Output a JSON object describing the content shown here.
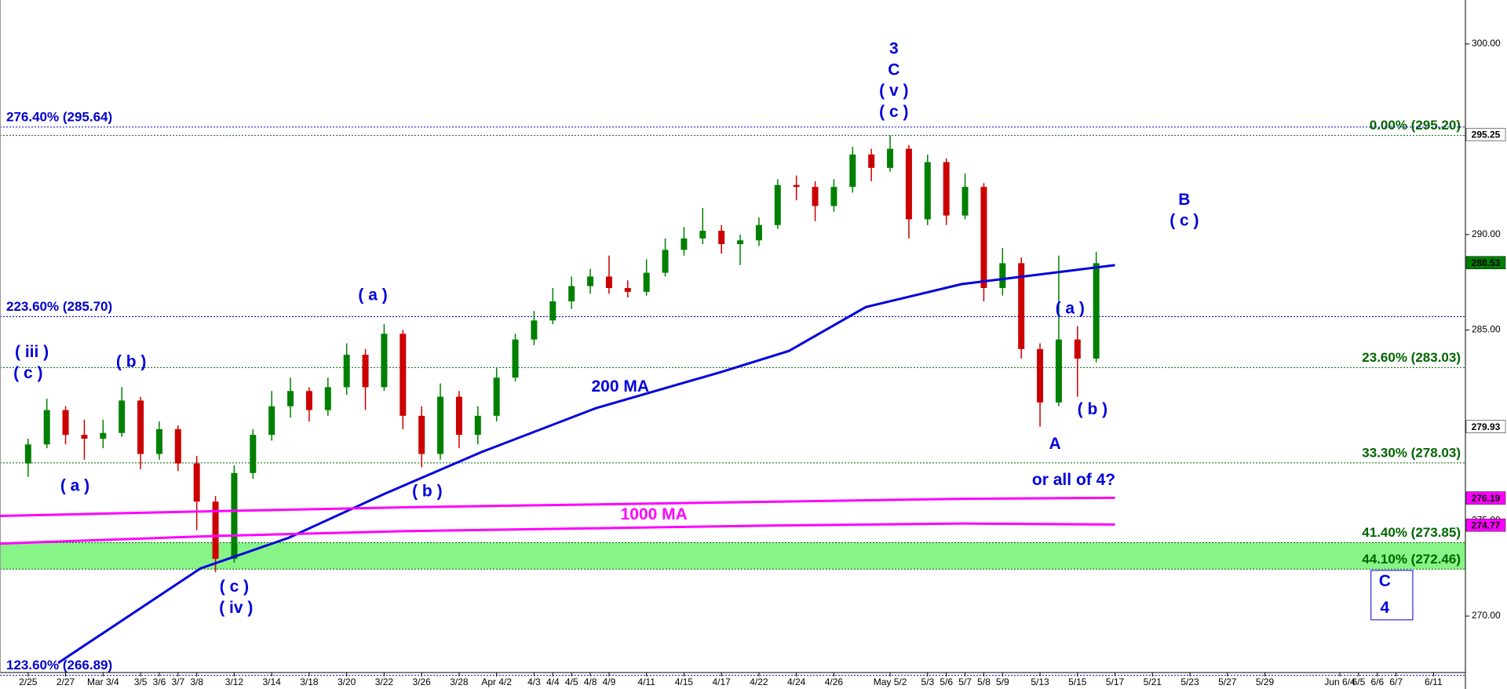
{
  "chart_data": {
    "type": "candlestick",
    "xlim": [
      -1.5,
      76.7
    ],
    "ylim": [
      267.04,
      302.3
    ],
    "xticks": [
      {
        "value": 0,
        "label": "2/25"
      },
      {
        "value": 2,
        "label": "2/27"
      },
      {
        "value": 4,
        "label": "Mar 3/4"
      },
      {
        "value": 6,
        "label": "3/5"
      },
      {
        "value": 7,
        "label": "3/6"
      },
      {
        "value": 8,
        "label": "3/7"
      },
      {
        "value": 9,
        "label": "3/8"
      },
      {
        "value": 11,
        "label": "3/12"
      },
      {
        "value": 13,
        "label": "3/14"
      },
      {
        "value": 15,
        "label": "3/18"
      },
      {
        "value": 17,
        "label": "3/20"
      },
      {
        "value": 19,
        "label": "3/22"
      },
      {
        "value": 21,
        "label": "3/26"
      },
      {
        "value": 23,
        "label": "3/28"
      },
      {
        "value": 25,
        "label": "Apr 4/2"
      },
      {
        "value": 27,
        "label": "4/3"
      },
      {
        "value": 28,
        "label": "4/4"
      },
      {
        "value": 29,
        "label": "4/5"
      },
      {
        "value": 30,
        "label": "4/8"
      },
      {
        "value": 31,
        "label": "4/9"
      },
      {
        "value": 33,
        "label": "4/11"
      },
      {
        "value": 35,
        "label": "4/15"
      },
      {
        "value": 37,
        "label": "4/17"
      },
      {
        "value": 39,
        "label": "4/22"
      },
      {
        "value": 41,
        "label": "4/24"
      },
      {
        "value": 43,
        "label": "4/26"
      },
      {
        "value": 46,
        "label": "May 5/2"
      },
      {
        "value": 48,
        "label": "5/3"
      },
      {
        "value": 49,
        "label": "5/6"
      },
      {
        "value": 50,
        "label": "5/7"
      },
      {
        "value": 51,
        "label": "5/8"
      },
      {
        "value": 52,
        "label": "5/9"
      },
      {
        "value": 54,
        "label": "5/13"
      },
      {
        "value": 56,
        "label": "5/15"
      },
      {
        "value": 58,
        "label": "5/17"
      },
      {
        "value": 60,
        "label": "5/21"
      },
      {
        "value": 62,
        "label": "5/23"
      },
      {
        "value": 64,
        "label": "5/27"
      },
      {
        "value": 66,
        "label": "5/29"
      },
      {
        "value": 70,
        "label": "Jun 6/4"
      },
      {
        "value": 71,
        "label": "6/5"
      },
      {
        "value": 72,
        "label": "6/6"
      },
      {
        "value": 73,
        "label": "6/7"
      },
      {
        "value": 75,
        "label": "6/11"
      }
    ],
    "yticks": [
      {
        "value": 270,
        "label": "270.00"
      },
      {
        "value": 275,
        "label": "275.00"
      },
      {
        "value": 285,
        "label": "285.00"
      },
      {
        "value": 290,
        "label": "290.00"
      },
      {
        "value": 300,
        "label": "300.00"
      }
    ],
    "up_color": "#008000",
    "down_color": "#cc0000",
    "open": [
      278.0,
      279.0,
      280.8,
      279.5,
      279.3,
      279.6,
      281.3,
      278.5,
      279.8,
      278.0,
      276.0,
      273.0,
      277.5,
      279.5,
      281.0,
      281.8,
      280.8,
      282.0,
      283.7,
      282.0,
      284.8,
      280.5,
      278.5,
      281.5,
      279.5,
      280.5,
      282.5,
      284.5,
      285.5,
      286.5,
      287.3,
      287.8,
      287.2,
      287.0,
      288.0,
      289.2,
      289.8,
      290.2,
      289.5,
      289.7,
      290.5,
      292.6,
      292.5,
      291.5,
      292.5,
      294.2,
      293.5,
      294.5,
      290.8,
      293.8,
      291.0,
      292.5,
      287.2,
      288.5,
      284.0,
      281.2,
      284.5,
      283.5
    ],
    "high": [
      279.3,
      281.4,
      281.0,
      280.3,
      280.3,
      282.0,
      281.5,
      280.2,
      280.0,
      278.4,
      276.3,
      277.9,
      279.8,
      281.8,
      282.5,
      282.0,
      282.5,
      284.3,
      284.0,
      285.3,
      285.0,
      281.0,
      282.2,
      281.8,
      281.0,
      283.0,
      284.8,
      286.0,
      287.2,
      287.8,
      288.2,
      288.9,
      287.6,
      288.7,
      289.8,
      290.4,
      291.4,
      290.5,
      290.0,
      290.9,
      292.9,
      293.1,
      292.8,
      292.9,
      294.6,
      294.5,
      295.2,
      294.7,
      294.2,
      294.0,
      293.2,
      292.7,
      289.3,
      288.8,
      284.3,
      288.9,
      285.2,
      289.1
    ],
    "low": [
      277.3,
      278.8,
      279.0,
      278.2,
      278.8,
      279.4,
      277.7,
      278.2,
      277.6,
      274.5,
      272.3,
      272.8,
      277.2,
      279.2,
      280.4,
      280.2,
      280.5,
      281.6,
      280.8,
      281.8,
      279.8,
      277.8,
      278.2,
      278.8,
      279.0,
      280.2,
      282.3,
      284.2,
      285.3,
      286.1,
      286.9,
      286.9,
      286.7,
      286.8,
      287.8,
      288.9,
      289.5,
      289.0,
      288.4,
      289.4,
      290.3,
      291.8,
      290.7,
      291.2,
      292.2,
      292.8,
      293.3,
      289.8,
      290.5,
      290.5,
      290.8,
      286.5,
      286.8,
      283.5,
      279.93,
      281.0,
      281.5,
      283.3
    ],
    "close": [
      279.0,
      280.8,
      279.5,
      279.3,
      279.6,
      281.3,
      278.5,
      279.8,
      278.0,
      276.0,
      273.0,
      277.5,
      279.5,
      281.0,
      281.8,
      280.8,
      282.0,
      283.7,
      282.0,
      284.8,
      280.5,
      278.5,
      281.5,
      279.5,
      280.5,
      282.5,
      284.5,
      285.5,
      286.5,
      287.3,
      287.8,
      287.2,
      287.0,
      288.0,
      289.2,
      289.8,
      290.2,
      289.5,
      289.7,
      290.5,
      292.6,
      292.5,
      291.5,
      292.5,
      294.2,
      293.5,
      294.5,
      290.8,
      293.8,
      291.0,
      292.5,
      287.2,
      288.5,
      284.0,
      281.2,
      284.5,
      283.5,
      288.5
    ],
    "lines": [
      {
        "color": "#0000dd",
        "x": [
          1.6,
          9.2,
          13.9,
          19,
          24.2,
          30.3,
          37,
          40.6,
          44.7,
          49.8,
          53.9,
          58
        ],
        "values": [
          267.54,
          272.5,
          274.1,
          276.4,
          278.6,
          280.9,
          282.8,
          283.9,
          286.2,
          287.4,
          287.9,
          288.4
        ]
      },
      {
        "color": "#ff00ff",
        "x": [
          -1.5,
          10,
          20,
          30,
          40,
          50,
          58
        ],
        "values": [
          275.25,
          275.5,
          275.7,
          275.85,
          276.0,
          276.15,
          276.2
        ]
      },
      {
        "color": "#ff00ff",
        "x": [
          -1.5,
          10,
          20,
          30,
          40,
          50,
          58
        ],
        "values": [
          273.8,
          274.2,
          274.45,
          274.6,
          274.75,
          274.85,
          274.8
        ]
      }
    ],
    "levels": [
      {
        "label": "276.40% (295.64)",
        "value": 295.64,
        "color": "#0000cc",
        "side": "left"
      },
      {
        "label": "0.00% (295.20)",
        "value": 295.2,
        "color": "#006400",
        "side": "right"
      },
      {
        "label": "223.60% (285.70)",
        "value": 285.7,
        "color": "#0000cc",
        "side": "left"
      },
      {
        "label": "23.60% (283.03)",
        "value": 283.03,
        "color": "#006400",
        "side": "right"
      },
      {
        "label": "33.30% (278.03)",
        "value": 278.03,
        "color": "#006400",
        "side": "right"
      },
      {
        "label": "41.40% (273.85)",
        "value": 273.85,
        "color": "#006400",
        "side": "right",
        "zone": true
      },
      {
        "label": "44.10% (272.46)",
        "value": 272.46,
        "color": "#006400",
        "side": "right",
        "zone": true
      },
      {
        "label": "123.60% (266.89)",
        "value": 266.89,
        "color": "#0000cc",
        "side": "left"
      }
    ],
    "zone_color": "#86f486",
    "annotations": [
      {
        "text": "( iii )",
        "x": 0.2,
        "y": 283.8,
        "color": "#0000dd"
      },
      {
        "text": "( c )",
        "x": 0,
        "y": 282.7,
        "color": "#0000dd"
      },
      {
        "text": "( b )",
        "x": 5.5,
        "y": 283.3,
        "color": "#0000dd"
      },
      {
        "text": "( a )",
        "x": 2.5,
        "y": 276.8,
        "color": "#0000dd"
      },
      {
        "text": "( a )",
        "x": 18.4,
        "y": 286.8,
        "color": "#0000dd"
      },
      {
        "text": "( b )",
        "x": 21.3,
        "y": 276.5,
        "color": "#0000dd"
      },
      {
        "text": "( c )",
        "x": 11,
        "y": 271.5,
        "color": "#0000dd"
      },
      {
        "text": "( iv )",
        "x": 11.1,
        "y": 270.4,
        "color": "#0000dd"
      },
      {
        "text": "200 MA",
        "x": 31.6,
        "y": 282.0,
        "color": "#0000dd"
      },
      {
        "text": "1000 MA",
        "x": 33.4,
        "y": 275.3,
        "color": "#ff00ff"
      },
      {
        "text": "3",
        "x": 46.2,
        "y": 299.7,
        "color": "#0000dd"
      },
      {
        "text": "C",
        "x": 46.2,
        "y": 298.6,
        "color": "#0000dd"
      },
      {
        "text": "( v )",
        "x": 46.2,
        "y": 297.5,
        "color": "#0000dd"
      },
      {
        "text": "( c )",
        "x": 46.2,
        "y": 296.4,
        "color": "#0000dd"
      },
      {
        "text": "B",
        "x": 61.7,
        "y": 291.8,
        "color": "#0000dd"
      },
      {
        "text": "( c )",
        "x": 61.7,
        "y": 290.7,
        "color": "#0000dd"
      },
      {
        "text": "( a )",
        "x": 55.6,
        "y": 286.1,
        "color": "#0000dd"
      },
      {
        "text": "( b )",
        "x": 56.8,
        "y": 280.8,
        "color": "#0000dd"
      },
      {
        "text": "A",
        "x": 54.8,
        "y": 279.0,
        "color": "#0000dd"
      },
      {
        "text": "or all of 4?",
        "x": 55.8,
        "y": 277.1,
        "color": "#0000dd"
      },
      {
        "text": "C",
        "x": 72.4,
        "y": 271.8,
        "color": "#0000dd",
        "boxed": true
      },
      {
        "text": "4",
        "x": 72.4,
        "y": 270.4,
        "color": "#0000dd",
        "boxed": true
      }
    ],
    "price_tags": [
      {
        "value": 295.25,
        "background": "#ffffff",
        "text_color": "#000000"
      },
      {
        "value": 288.53,
        "background": "#008000",
        "text_color": "#ffffff"
      },
      {
        "value": 279.93,
        "background": "#ffffff",
        "text_color": "#000000"
      },
      {
        "value": 276.19,
        "background": "#ff00ff",
        "text_color": "#ffffff"
      },
      {
        "value": 274.77,
        "background": "#ff00ff",
        "text_color": "#ffffff"
      }
    ]
  }
}
